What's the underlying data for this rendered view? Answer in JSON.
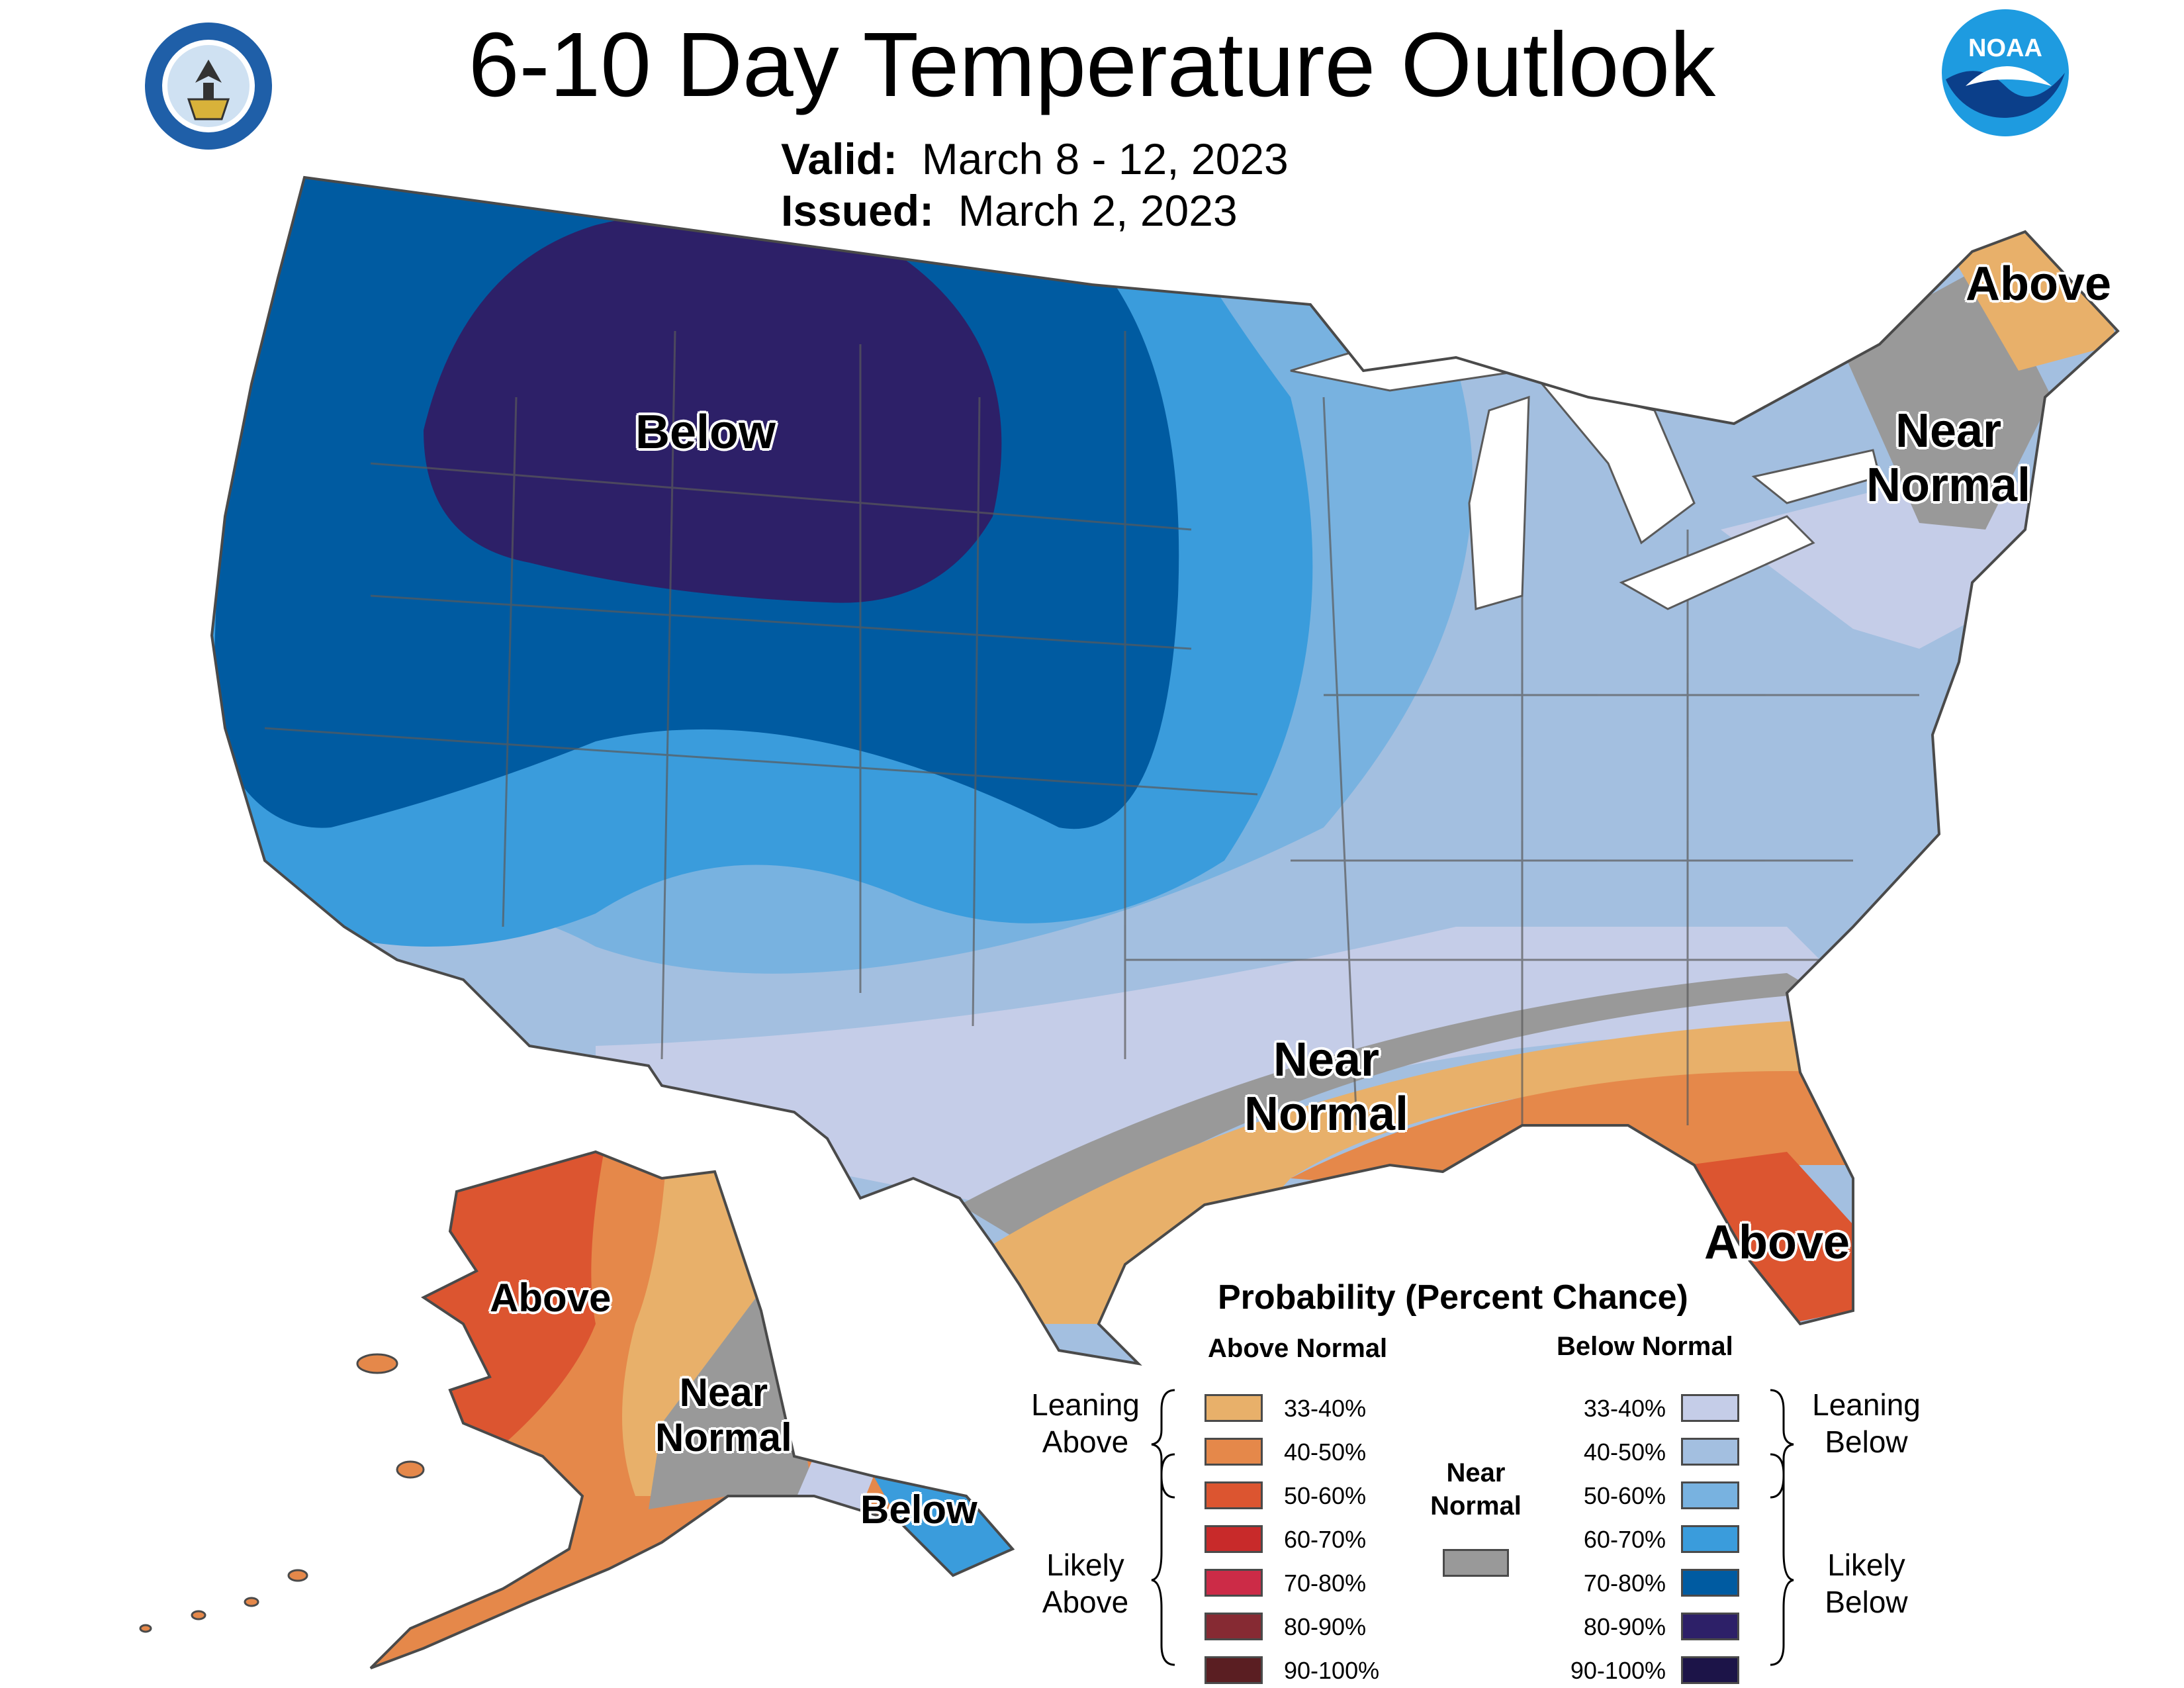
{
  "title": "6-10 Day Temperature Outlook",
  "valid": {
    "label": "Valid:",
    "value": "March 8 - 12, 2023"
  },
  "issued": {
    "label": "Issued:",
    "value": "March 2, 2023"
  },
  "logos": {
    "left": "department-of-commerce-seal",
    "right": "noaa-logo",
    "noaa_text": "NOAA"
  },
  "map_labels": {
    "below_west": "Below",
    "near_normal_south": [
      "Near",
      "Normal"
    ],
    "near_normal_northeast": [
      "Near",
      "Normal"
    ],
    "above_maine": "Above",
    "above_florida": "Above",
    "above_alaska": "Above",
    "near_normal_alaska": [
      "Near",
      "Normal"
    ],
    "below_alaska": "Below"
  },
  "legend": {
    "title": "Probability (Percent Chance)",
    "above_header": "Above Normal",
    "below_header": "Below Normal",
    "near_header": [
      "Near",
      "Normal"
    ],
    "leaning_above": [
      "Leaning",
      "Above"
    ],
    "likely_above": [
      "Likely",
      "Above"
    ],
    "leaning_below": [
      "Leaning",
      "Below"
    ],
    "likely_below": [
      "Likely",
      "Below"
    ],
    "above_rows": [
      {
        "label": "33-40%",
        "color": "#e8b06a"
      },
      {
        "label": "40-50%",
        "color": "#e5884a"
      },
      {
        "label": "50-60%",
        "color": "#dc5530"
      },
      {
        "label": "60-70%",
        "color": "#c82a2a"
      },
      {
        "label": "70-80%",
        "color": "#cc2b47"
      },
      {
        "label": "80-90%",
        "color": "#862a33"
      },
      {
        "label": "90-100%",
        "color": "#5a1e22"
      }
    ],
    "below_rows": [
      {
        "label": "33-40%",
        "color": "#c5cde8"
      },
      {
        "label": "40-50%",
        "color": "#a3bfe0"
      },
      {
        "label": "50-60%",
        "color": "#78b2e0"
      },
      {
        "label": "60-70%",
        "color": "#3a9cdc"
      },
      {
        "label": "70-80%",
        "color": "#005ba1"
      },
      {
        "label": "80-90%",
        "color": "#2d2068"
      },
      {
        "label": "90-100%",
        "color": "#1c1448"
      }
    ],
    "near_color": "#999999"
  }
}
